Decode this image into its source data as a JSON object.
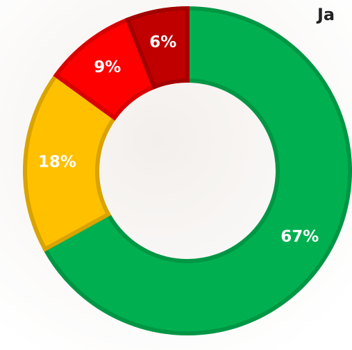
{
  "chart_data": {
    "type": "pie",
    "title": "Ja",
    "categories": [
      null,
      null,
      null,
      null
    ],
    "values": [
      67,
      18,
      9,
      6
    ],
    "value_labels": [
      "67%",
      "18%",
      "9%",
      "6%"
    ],
    "colors": [
      "#00b050",
      "#ffc000",
      "#ff0000",
      "#c00000"
    ]
  }
}
